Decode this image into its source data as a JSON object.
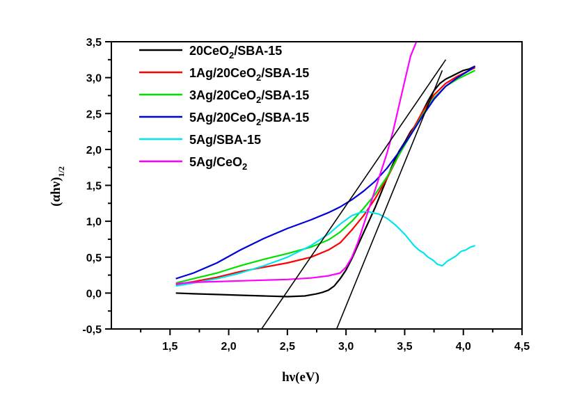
{
  "chart_data": {
    "type": "line",
    "xlabel": "hν(eV)",
    "ylabel": "(αhν)1/2",
    "ylabel_main": "(αhν)",
    "ylabel_sub": "1/2",
    "xlim": [
      1.0,
      4.5
    ],
    "ylim": [
      -0.5,
      3.5
    ],
    "x_ticks": [
      1.5,
      2.0,
      2.5,
      3.0,
      3.5,
      4.0,
      4.5
    ],
    "x_tick_labels": [
      "1,5",
      "2,0",
      "2,5",
      "3,0",
      "3,5",
      "4,0",
      "4,5"
    ],
    "y_ticks": [
      -0.5,
      0.0,
      0.5,
      1.0,
      1.5,
      2.0,
      2.5,
      3.0,
      3.5
    ],
    "y_tick_labels": [
      "-0,5",
      "0,0",
      "0,5",
      "1,0",
      "1,5",
      "2,0",
      "2,5",
      "3,0",
      "3,5"
    ],
    "grid": false,
    "legend_position": "top-left",
    "series": [
      {
        "name": "20CeO2/SBA-15",
        "label_parts": [
          "20CeO",
          "2",
          "/SBA-15"
        ],
        "color": "#000000",
        "x": [
          1.55,
          1.7,
          1.9,
          2.1,
          2.3,
          2.5,
          2.65,
          2.75,
          2.8,
          2.85,
          2.9,
          2.95,
          3.0,
          3.05,
          3.1,
          3.15,
          3.2,
          3.25,
          3.3,
          3.35,
          3.4,
          3.45,
          3.5,
          3.55,
          3.6,
          3.65,
          3.7,
          3.75,
          3.8,
          3.85,
          3.9,
          3.95,
          4.0,
          4.05,
          4.1
        ],
        "y": [
          0.0,
          -0.01,
          -0.02,
          -0.03,
          -0.04,
          -0.05,
          -0.04,
          -0.01,
          0.01,
          0.04,
          0.1,
          0.2,
          0.32,
          0.48,
          0.66,
          0.84,
          1.02,
          1.2,
          1.4,
          1.6,
          1.8,
          1.97,
          2.1,
          2.25,
          2.35,
          2.52,
          2.68,
          2.82,
          2.92,
          2.98,
          3.02,
          3.06,
          3.1,
          3.12,
          3.16
        ]
      },
      {
        "name": "1Ag/20CeO2/SBA-15",
        "label_parts": [
          "1Ag/20CeO",
          "2",
          "/SBA-15"
        ],
        "color": "#ff0000",
        "x": [
          1.55,
          1.7,
          1.9,
          2.1,
          2.3,
          2.5,
          2.7,
          2.85,
          2.95,
          3.05,
          3.15,
          3.25,
          3.35,
          3.45,
          3.55,
          3.65,
          3.75,
          3.85,
          3.95,
          4.05,
          4.1
        ],
        "y": [
          0.12,
          0.16,
          0.22,
          0.3,
          0.36,
          0.42,
          0.5,
          0.6,
          0.7,
          0.88,
          1.08,
          1.32,
          1.6,
          1.92,
          2.22,
          2.52,
          2.76,
          2.92,
          3.02,
          3.1,
          3.14
        ]
      },
      {
        "name": "3Ag/20CeO2/SBA-15",
        "label_parts": [
          "3Ag/20CeO",
          "2",
          "/SBA-15"
        ],
        "color": "#00e000",
        "x": [
          1.55,
          1.7,
          1.9,
          2.1,
          2.3,
          2.5,
          2.7,
          2.85,
          2.95,
          3.05,
          3.15,
          3.25,
          3.35,
          3.45,
          3.55,
          3.65,
          3.75,
          3.85,
          3.95,
          4.05,
          4.1
        ],
        "y": [
          0.14,
          0.2,
          0.28,
          0.38,
          0.47,
          0.55,
          0.64,
          0.74,
          0.85,
          1.0,
          1.18,
          1.38,
          1.62,
          1.92,
          2.2,
          2.48,
          2.72,
          2.88,
          2.98,
          3.06,
          3.1
        ]
      },
      {
        "name": "5Ag/20CeO2/SBA-15",
        "label_parts": [
          "5Ag/20CeO",
          "2",
          "/SBA-15"
        ],
        "color": "#0000dd",
        "x": [
          1.55,
          1.7,
          1.9,
          2.1,
          2.3,
          2.5,
          2.7,
          2.85,
          2.95,
          3.05,
          3.15,
          3.25,
          3.35,
          3.45,
          3.55,
          3.65,
          3.75,
          3.85,
          3.95,
          4.05,
          4.1
        ],
        "y": [
          0.2,
          0.28,
          0.42,
          0.6,
          0.76,
          0.9,
          1.02,
          1.12,
          1.2,
          1.3,
          1.42,
          1.56,
          1.74,
          1.96,
          2.2,
          2.46,
          2.7,
          2.88,
          3.0,
          3.1,
          3.16
        ]
      },
      {
        "name": "5Ag/SBA-15",
        "label_parts": [
          "5Ag/SBA-15",
          "",
          ""
        ],
        "color": "#00e5ee",
        "x": [
          1.55,
          1.7,
          1.9,
          2.1,
          2.3,
          2.5,
          2.7,
          2.85,
          2.95,
          3.05,
          3.12,
          3.18,
          3.22,
          3.28,
          3.35,
          3.42,
          3.5,
          3.58,
          3.62,
          3.66,
          3.7,
          3.74,
          3.78,
          3.82,
          3.86,
          3.9,
          3.94,
          3.98,
          4.02,
          4.06,
          4.1
        ],
        "y": [
          0.1,
          0.14,
          0.2,
          0.28,
          0.38,
          0.5,
          0.66,
          0.82,
          0.96,
          1.08,
          1.12,
          1.14,
          1.12,
          1.1,
          1.04,
          0.95,
          0.82,
          0.66,
          0.6,
          0.56,
          0.5,
          0.46,
          0.4,
          0.38,
          0.44,
          0.48,
          0.52,
          0.58,
          0.6,
          0.64,
          0.66
        ]
      },
      {
        "name": "5Ag/CeO2",
        "label_parts": [
          "5Ag/CeO",
          "2",
          ""
        ],
        "color": "#ff00ff",
        "x": [
          1.55,
          1.7,
          1.9,
          2.1,
          2.3,
          2.5,
          2.7,
          2.85,
          2.95,
          3.0,
          3.05,
          3.1,
          3.15,
          3.2,
          3.25,
          3.3,
          3.35,
          3.4,
          3.45,
          3.5,
          3.55,
          3.6
        ],
        "y": [
          0.13,
          0.15,
          0.16,
          0.17,
          0.18,
          0.19,
          0.21,
          0.24,
          0.28,
          0.36,
          0.5,
          0.7,
          0.95,
          1.2,
          1.45,
          1.7,
          1.95,
          2.25,
          2.6,
          2.95,
          3.3,
          3.5
        ]
      }
    ],
    "tangent_lines": [
      {
        "x": [
          2.28,
          3.85
        ],
        "y": [
          -0.5,
          3.25
        ],
        "color": "#000000"
      },
      {
        "x": [
          2.92,
          3.82
        ],
        "y": [
          -0.5,
          3.1
        ],
        "color": "#000000"
      }
    ]
  }
}
